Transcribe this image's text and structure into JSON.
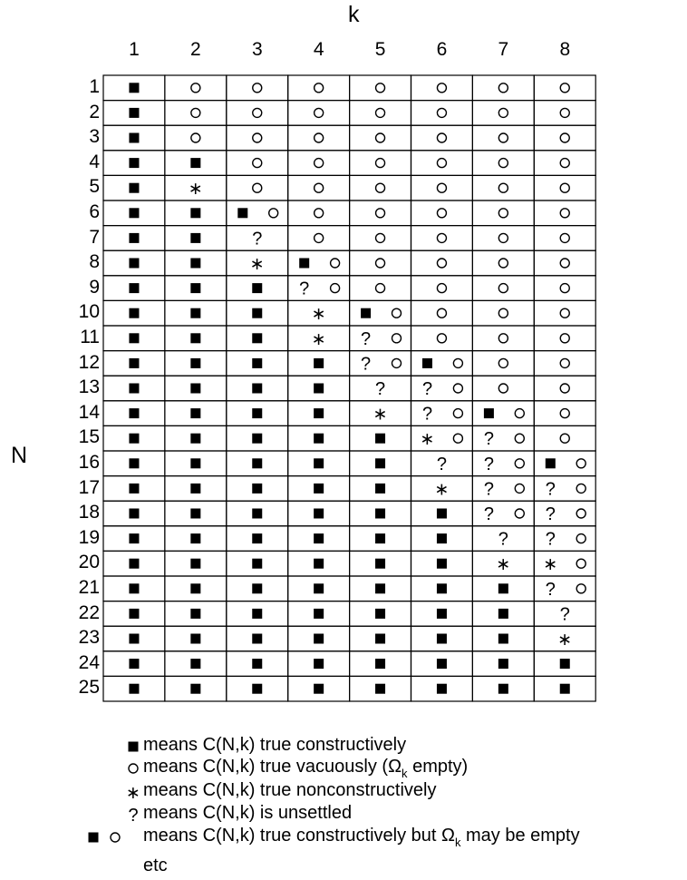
{
  "axis": {
    "column_label": "k",
    "row_label": "N"
  },
  "columns": [
    "1",
    "2",
    "3",
    "4",
    "5",
    "6",
    "7",
    "8"
  ],
  "rows": [
    "1",
    "2",
    "3",
    "4",
    "5",
    "6",
    "7",
    "8",
    "9",
    "10",
    "11",
    "12",
    "13",
    "14",
    "15",
    "16",
    "17",
    "18",
    "19",
    "20",
    "21",
    "22",
    "23",
    "24",
    "25"
  ],
  "symbol_key": {
    "S": "filled-square",
    "O": "hollow-circle",
    "A": "asterisk",
    "Q": "question-mark"
  },
  "cells": [
    [
      "S",
      "O",
      "O",
      "O",
      "O",
      "O",
      "O",
      "O"
    ],
    [
      "S",
      "O",
      "O",
      "O",
      "O",
      "O",
      "O",
      "O"
    ],
    [
      "S",
      "O",
      "O",
      "O",
      "O",
      "O",
      "O",
      "O"
    ],
    [
      "S",
      "S",
      "O",
      "O",
      "O",
      "O",
      "O",
      "O"
    ],
    [
      "S",
      "A",
      "O",
      "O",
      "O",
      "O",
      "O",
      "O"
    ],
    [
      "S",
      "S",
      "SO",
      "O",
      "O",
      "O",
      "O",
      "O"
    ],
    [
      "S",
      "S",
      "Q",
      "O",
      "O",
      "O",
      "O",
      "O"
    ],
    [
      "S",
      "S",
      "A",
      "SO",
      "O",
      "O",
      "O",
      "O"
    ],
    [
      "S",
      "S",
      "S",
      "QO",
      "O",
      "O",
      "O",
      "O"
    ],
    [
      "S",
      "S",
      "S",
      "A",
      "SO",
      "O",
      "O",
      "O"
    ],
    [
      "S",
      "S",
      "S",
      "A",
      "QO",
      "O",
      "O",
      "O"
    ],
    [
      "S",
      "S",
      "S",
      "S",
      "QO",
      "SO",
      "O",
      "O"
    ],
    [
      "S",
      "S",
      "S",
      "S",
      "Q",
      "QO",
      "O",
      "O"
    ],
    [
      "S",
      "S",
      "S",
      "S",
      "A",
      "QO",
      "SO",
      "O"
    ],
    [
      "S",
      "S",
      "S",
      "S",
      "S",
      "AO",
      "QO",
      "O"
    ],
    [
      "S",
      "S",
      "S",
      "S",
      "S",
      "Q",
      "QO",
      "SO"
    ],
    [
      "S",
      "S",
      "S",
      "S",
      "S",
      "A",
      "QO",
      "QO"
    ],
    [
      "S",
      "S",
      "S",
      "S",
      "S",
      "S",
      "QO",
      "QO"
    ],
    [
      "S",
      "S",
      "S",
      "S",
      "S",
      "S",
      "Q",
      "QO"
    ],
    [
      "S",
      "S",
      "S",
      "S",
      "S",
      "S",
      "A",
      "AO"
    ],
    [
      "S",
      "S",
      "S",
      "S",
      "S",
      "S",
      "S",
      "QO"
    ],
    [
      "S",
      "S",
      "S",
      "S",
      "S",
      "S",
      "S",
      "Q"
    ],
    [
      "S",
      "S",
      "S",
      "S",
      "S",
      "S",
      "S",
      "A"
    ],
    [
      "S",
      "S",
      "S",
      "S",
      "S",
      "S",
      "S",
      "S"
    ],
    [
      "S",
      "S",
      "S",
      "S",
      "S",
      "S",
      "S",
      "S"
    ]
  ],
  "legend": [
    {
      "symbols": "S",
      "text_before": "means C(N,k) true constructively",
      "sub": "",
      "text_after": ""
    },
    {
      "symbols": "O",
      "text_before": "means C(N,k) true vacuously (Ω",
      "sub": "k",
      "text_after": " empty)"
    },
    {
      "symbols": "A",
      "text_before": "means C(N,k) true nonconstructively",
      "sub": "",
      "text_after": ""
    },
    {
      "symbols": "Q",
      "text_before": "means C(N,k) is unsettled",
      "sub": "",
      "text_after": ""
    },
    {
      "symbols": "SO",
      "text_before": "means C(N,k) true constructively but Ω",
      "sub": "k",
      "text_after": " may be empty"
    },
    {
      "symbols": "",
      "text_before": "etc",
      "sub": "",
      "text_after": ""
    }
  ]
}
